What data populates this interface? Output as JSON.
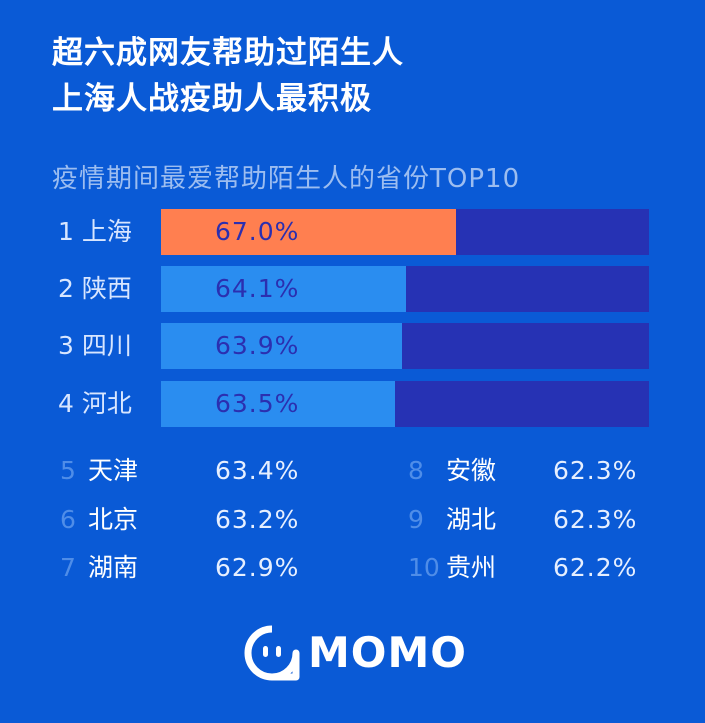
{
  "headline": {
    "line1": "超六成网友帮助过陌生人",
    "line2": "上海人战疫助人最积极"
  },
  "chart_data": {
    "type": "bar",
    "title": "疫情期间最爱帮助陌生人的省份TOP10",
    "xlim": [
      0,
      100
    ],
    "top_bars": [
      {
        "rank": "1",
        "province": "上海",
        "value": 67.0,
        "label": "67.0%"
      },
      {
        "rank": "2",
        "province": "陕西",
        "value": 64.1,
        "label": "64.1%"
      },
      {
        "rank": "3",
        "province": "四川",
        "value": 63.9,
        "label": "63.9%"
      },
      {
        "rank": "4",
        "province": "河北",
        "value": 63.5,
        "label": "63.5%"
      }
    ],
    "others": [
      {
        "rank": "5",
        "province": "天津",
        "value": 63.4,
        "label": "63.4%"
      },
      {
        "rank": "6",
        "province": "北京",
        "value": 63.2,
        "label": "63.2%"
      },
      {
        "rank": "7",
        "province": "湖南",
        "value": 62.9,
        "label": "62.9%"
      },
      {
        "rank": "8",
        "province": "安徽",
        "value": 62.3,
        "label": "62.3%"
      },
      {
        "rank": "9",
        "province": "湖北",
        "value": 62.3,
        "label": "62.3%"
      },
      {
        "rank": "10",
        "province": "贵州",
        "value": 62.2,
        "label": "62.2%"
      }
    ]
  },
  "brand": {
    "name": "MOMO",
    "icon": "momo-logo-icon"
  },
  "colors": {
    "background": "#0a5ad6",
    "bar_track": "#2632b4",
    "bar_fill": "#2a8df0",
    "bar_fill_top": "#ff7f50"
  }
}
